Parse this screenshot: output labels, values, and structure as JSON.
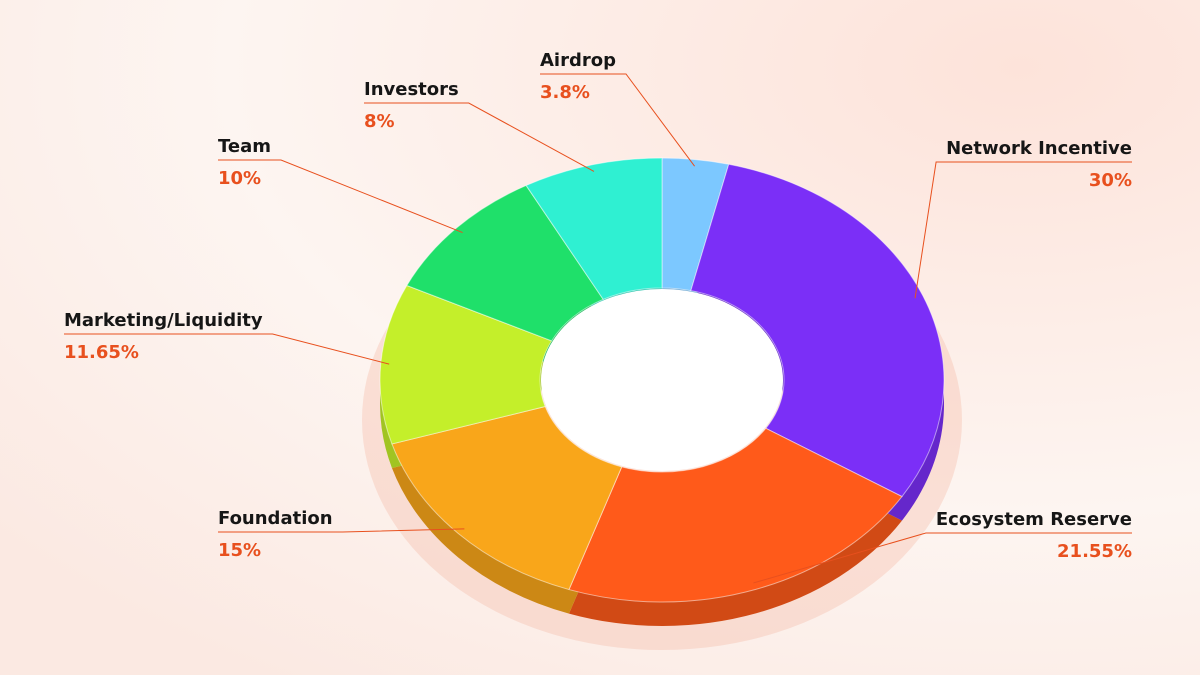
{
  "chart_data": {
    "type": "pie",
    "donut": true,
    "categories": [
      "Airdrop",
      "Network Incentive",
      "Ecosystem Reserve",
      "Foundation",
      "Marketing/Liquidity",
      "Team",
      "Investors"
    ],
    "values": [
      3.8,
      30,
      21.55,
      15,
      11.65,
      10,
      8
    ],
    "value_labels": [
      "3.8%",
      "30%",
      "21.55%",
      "15%",
      "11.65%",
      "10%",
      "8%"
    ],
    "colors": [
      "#7cc8ff",
      "#7b2ff7",
      "#ff5a1a",
      "#f9a61a",
      "#c4ef2a",
      "#1fe06a",
      "#2ff0d2"
    ]
  }
}
